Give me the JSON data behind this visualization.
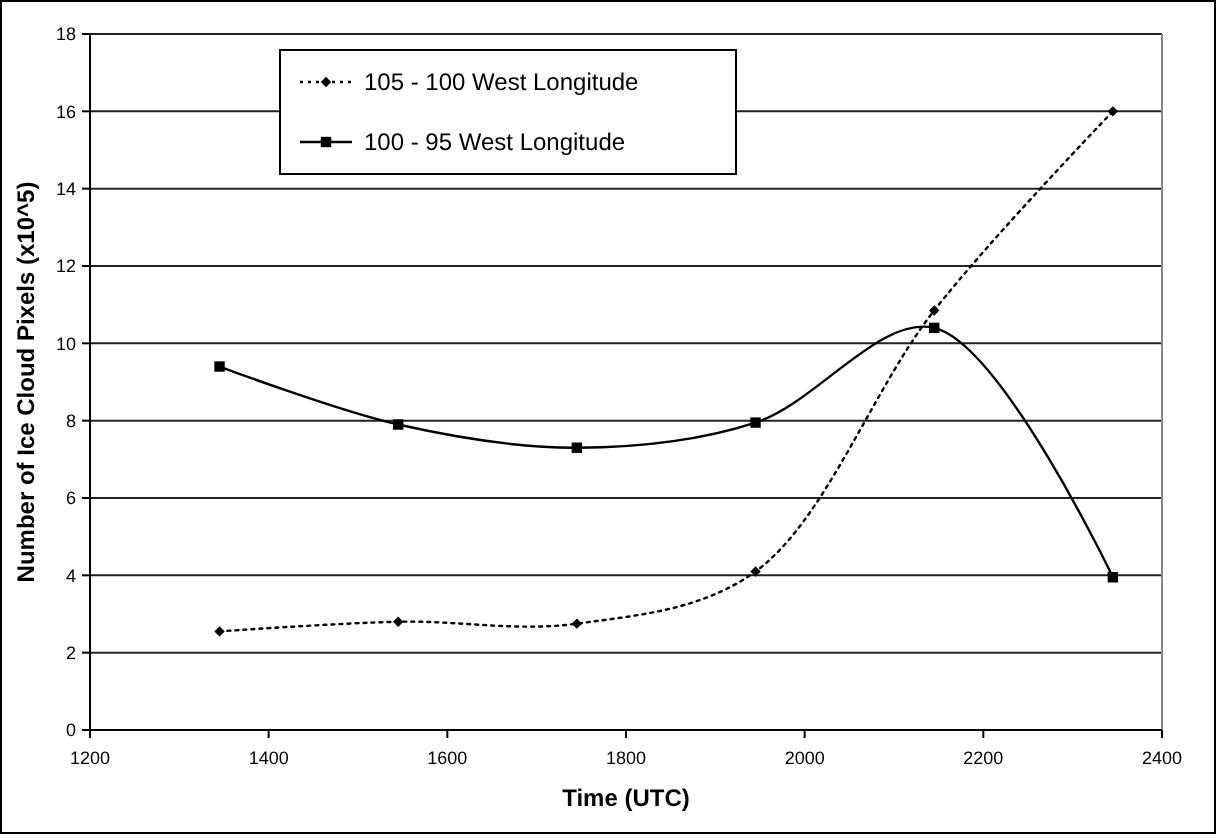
{
  "chart_data": {
    "type": "line",
    "xlabel": "Time (UTC)",
    "ylabel": "Number of Ice Cloud Pixels (x10^5)",
    "x": [
      1345,
      1545,
      1745,
      1945,
      2145,
      2345
    ],
    "series": [
      {
        "name": "105 - 100 West Longitude",
        "color": "#000000",
        "line_style": "dotted",
        "marker": "diamond",
        "values": [
          2.55,
          2.8,
          2.75,
          4.1,
          10.85,
          16
        ]
      },
      {
        "name": "100 - 95 West Longitude",
        "color": "#000000",
        "line_style": "solid",
        "marker": "square",
        "values": [
          9.4,
          7.9,
          7.3,
          7.95,
          10.4,
          3.95
        ]
      }
    ],
    "xlim": [
      1200,
      2400
    ],
    "xticks": [
      1200,
      1400,
      1600,
      1800,
      2000,
      2200,
      2400
    ],
    "ylim": [
      0,
      18
    ],
    "yticks": [
      0,
      2,
      4,
      6,
      8,
      10,
      12,
      14,
      16,
      18
    ],
    "grid": "y",
    "legend": "top left"
  }
}
